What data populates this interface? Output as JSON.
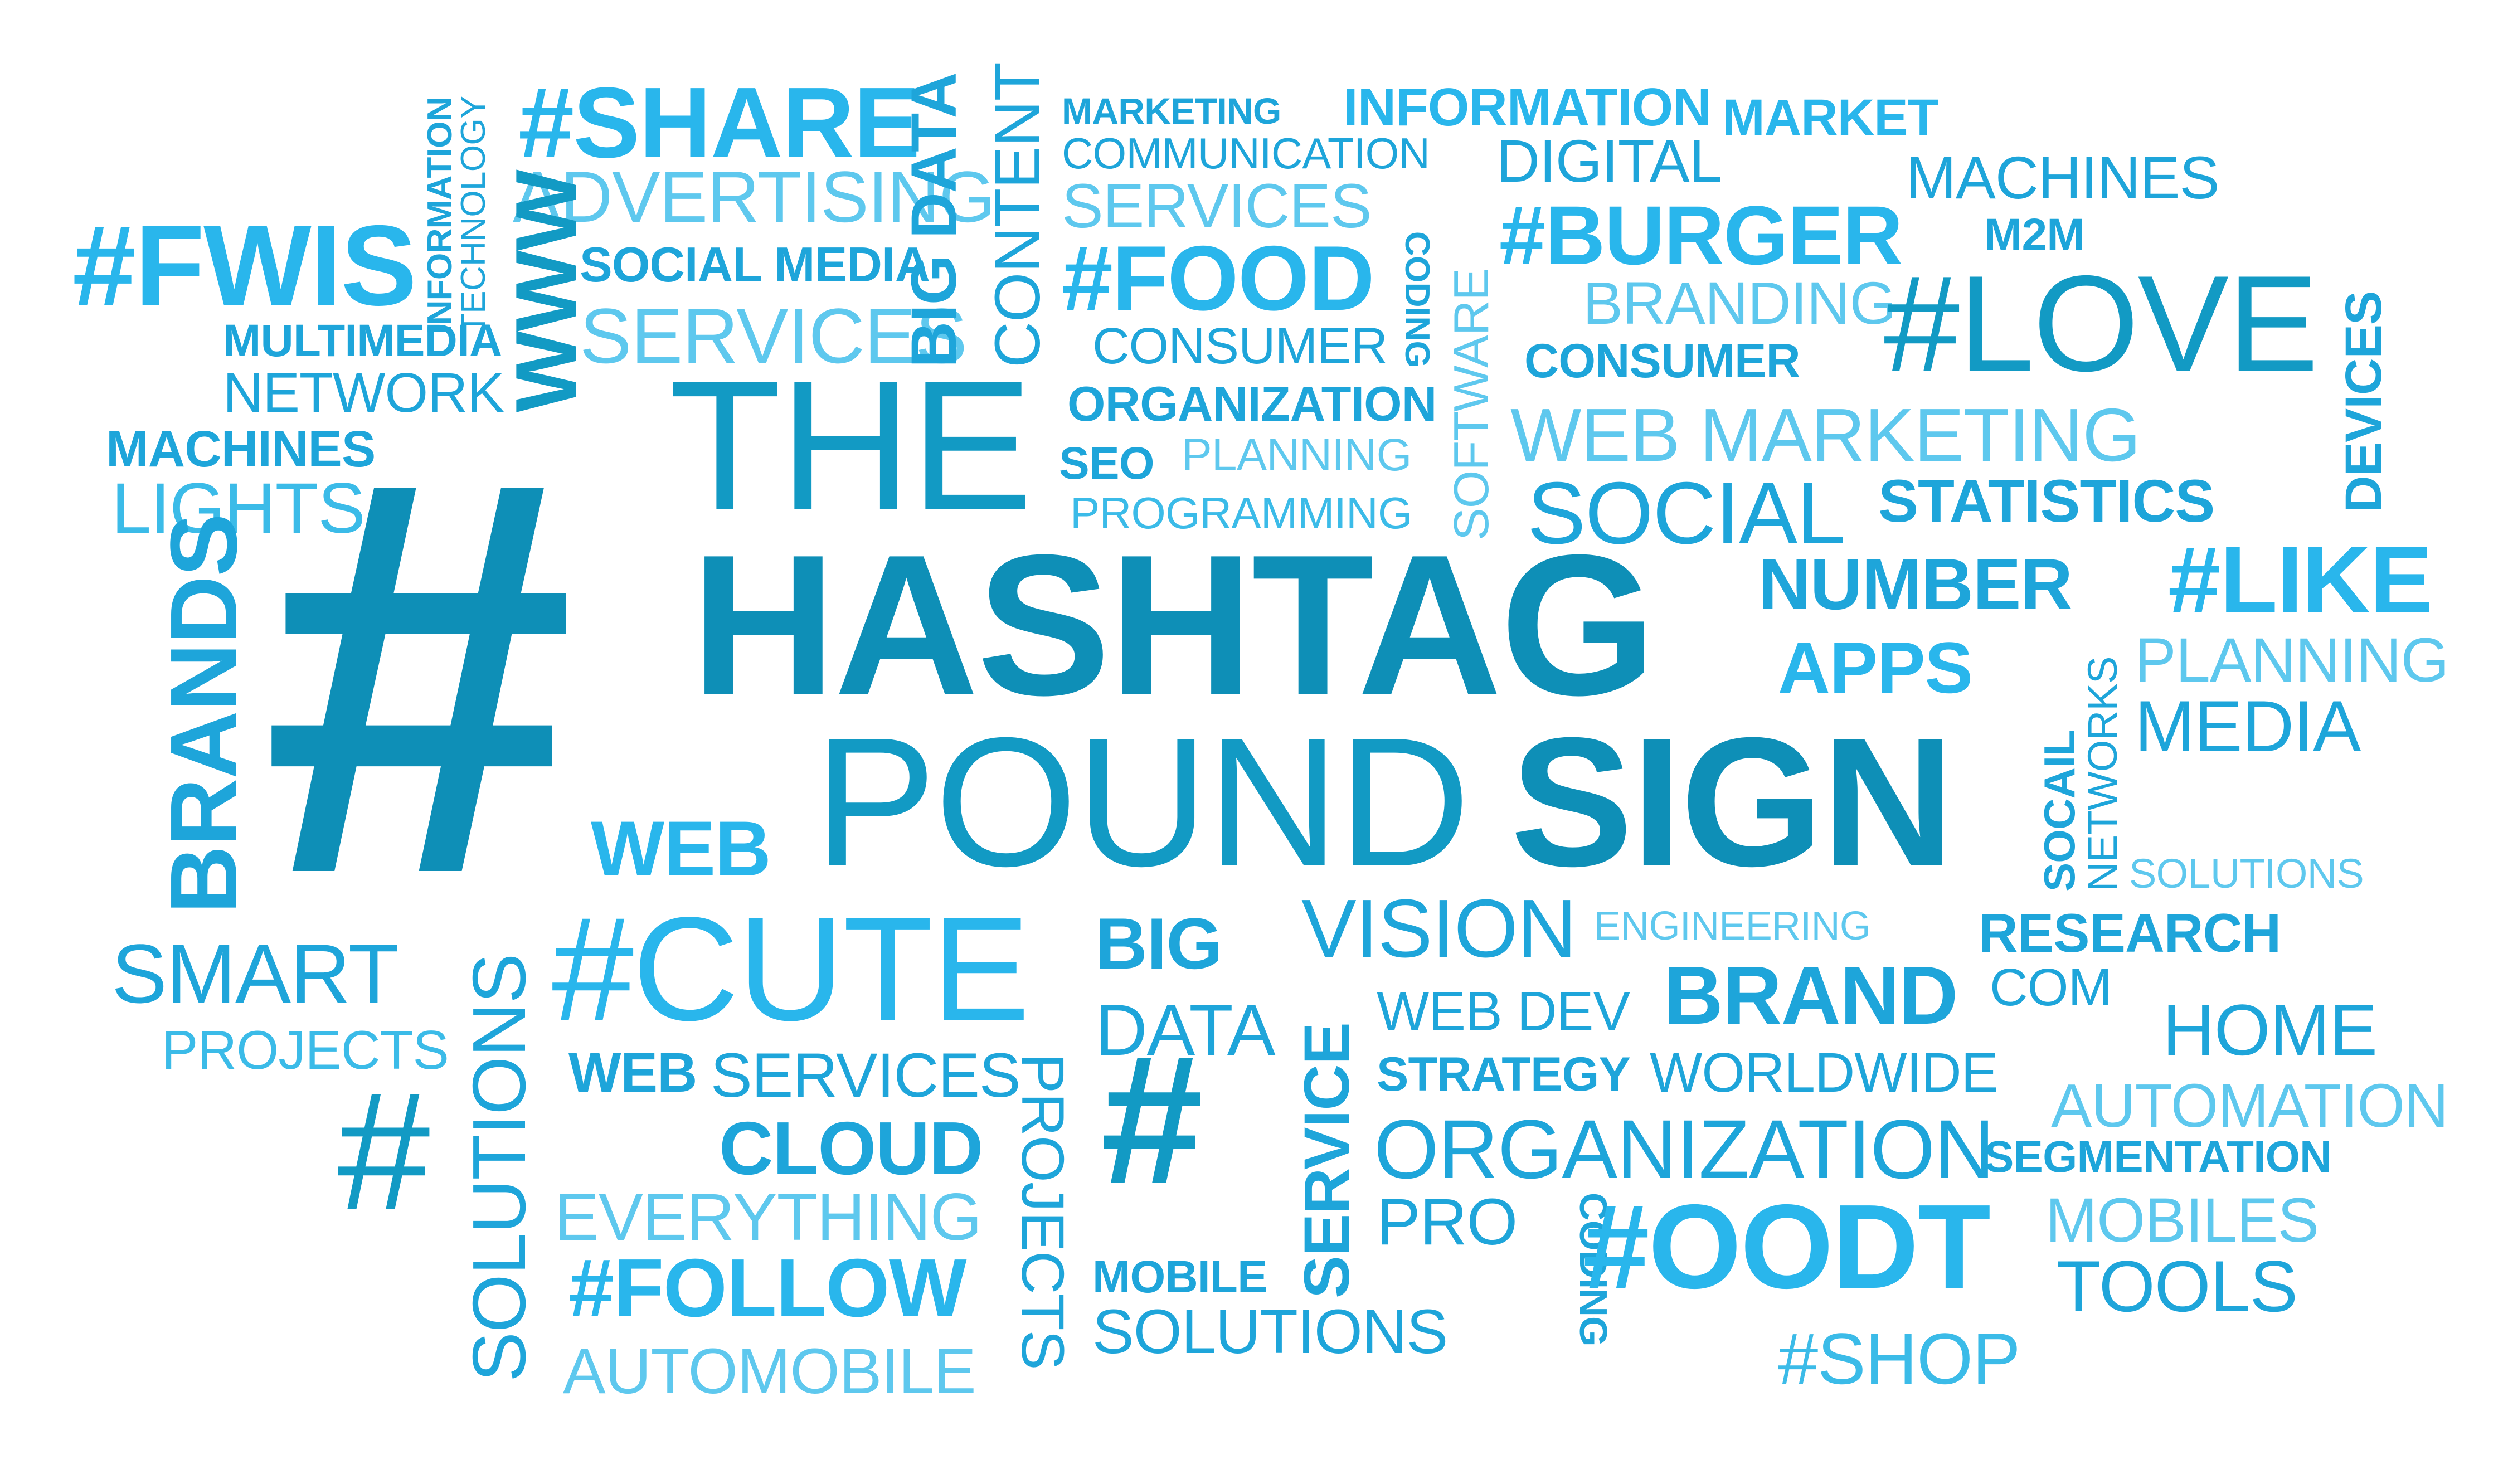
{
  "words": {
    "hash_big": "#",
    "hash": "#",
    "the": "THE",
    "hashtag": "HASHTAG",
    "pound": "POUND",
    "sign": "SIGN",
    "share": "#SHARE",
    "advertising": "ADVERTISING",
    "fwis": "#FWIS",
    "information_v": "INFORMATION",
    "technology_v": "TECHNOLOGY",
    "www": "WWW",
    "social_media": "SOCIAL MEDIA",
    "services": "SERVICES",
    "big_data": "BIG DATA",
    "content": "CONTENT",
    "multimedia": "MULTIMEDIA",
    "network": "NETWORK",
    "machines": "MACHINES",
    "lights": "LIGHTS",
    "brands": "BRANDS",
    "marketing_caps": "MARKETING",
    "communication": "COMMUNICATION",
    "food": "#FOOD",
    "consumer": "CONSUMER",
    "consumer_caps": "CONSUMER",
    "coding": "CODING",
    "organization": "ORGANIZATION",
    "seo": "SEO",
    "planning": "PLANNING",
    "programming": "PROGRAMMING",
    "software": "SOFTWARE",
    "information": "INFORMATION",
    "market": "MARKET",
    "digital": "DIGITAL",
    "burger": "#BURGER",
    "m2m": "M2M",
    "branding": "BRANDING",
    "love": "#LOVE",
    "devices": "DEVICES",
    "web_marketing": "WEB MARKETING",
    "social": "SOCIAL",
    "statistics": "STATISTICS",
    "number": "NUMBER",
    "like": "#LIKE",
    "apps": "APPS",
    "media": "MEDIA",
    "socail": "SOCAIL",
    "networks": "NETWORKS",
    "solutions": "SOLUTIONS",
    "solutions_mixed": "SOLUTIONS",
    "web": "WEB",
    "smart": "SMART",
    "projects": "PROJECTS",
    "cute": "#CUTE",
    "cloud": "CLOUD",
    "everything": "EVERYTHING",
    "follow": "#FOLLOW",
    "automobile": "AUTOMOBILE",
    "big": "BIG",
    "data": "DATA",
    "mobile": "MOBILE",
    "service": "SERVICE",
    "vision": "VISION",
    "engineering": "ENGINEERING",
    "web_dev": "WEB DEV",
    "brand": "BRAND",
    "strategy": "STRATEGY",
    "worldwide": "WORLDWIDE",
    "pro": "PRO",
    "oodt": "#OODT",
    "shop": "#SHOP",
    "research": "RESEARCH",
    "com": "COM",
    "home": "HOME",
    "automation": "AUTOMATION",
    "segmentation": "SEGMENTATION",
    "mobiles": "MOBILES",
    "tools": "TOOLS"
  },
  "colors": {
    "background": "#ffffff",
    "primary_blue": "#1ea5da",
    "bright_blue": "#29b6ec",
    "deep_blue": "#129ac4",
    "dark_teal_blue": "#0e8fb7",
    "light_blue": "#5ec8ee"
  }
}
